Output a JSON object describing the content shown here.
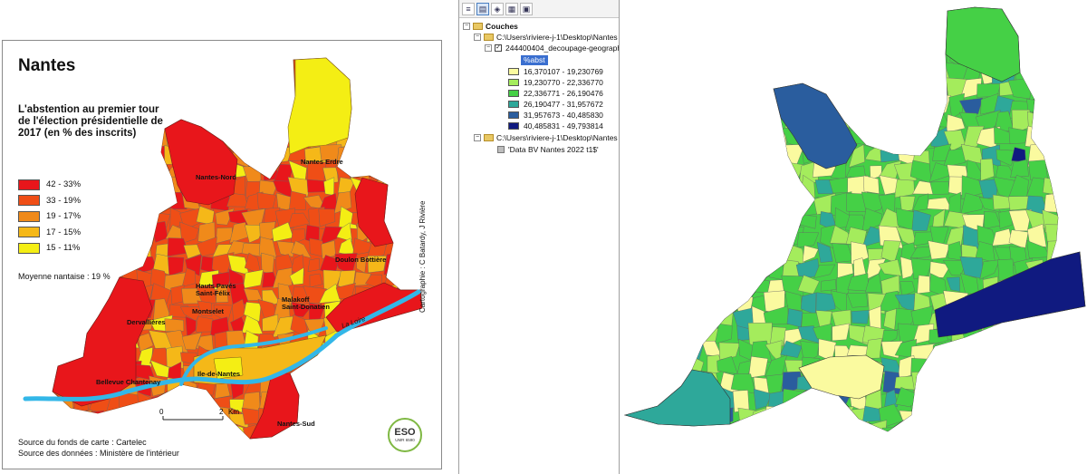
{
  "left_map": {
    "title": "Nantes",
    "subtitle": "L'abstention au premier tour de l'élection présidentielle de 2017 (en % des inscrits)",
    "legend": [
      {
        "label": "42 - 33%",
        "color": "#e8161b"
      },
      {
        "label": "33 - 19%",
        "color": "#ef4e16"
      },
      {
        "label": "19 - 17%",
        "color": "#f08a1a"
      },
      {
        "label": "17 - 15%",
        "color": "#f5b818"
      },
      {
        "label": "15 - 11%",
        "color": "#f4ee14"
      }
    ],
    "average_note": "Moyenne nantaise : 19 %",
    "places": {
      "nantes_nord": "Nantes-Nord",
      "nantes_erdre": "Nantes Erdre",
      "doulon": "Doulon Bottière",
      "hauts_paves": "Hauts Pavés",
      "saint_felix": "Saint-Félix",
      "malakoff": "Malakoff",
      "saint_donatien": "Saint-Donatien",
      "dervallieres": "Dervallières",
      "montsec": "Montselet",
      "ile_de_nantes": "Ile-de-Nantes",
      "bellevue": "Bellevue Chantenay",
      "nantes_sud": "Nantes-Sud",
      "la_loire": "La Loire"
    },
    "scale": {
      "start": "0",
      "end": "2",
      "unit": "Km"
    },
    "credit": "Cartographie : C Batardy, J Rivière",
    "source_fonds": "Source du fonds de carte : Cartelec",
    "source_donnees": "Source des données : Ministère de l'intérieur",
    "logo": {
      "main": "ESO",
      "sub": "UMR 6590"
    },
    "river_color": "#33b7e8"
  },
  "toc": {
    "root_label": "Couches",
    "group1_path": "C:\\Users\\riviere-j-1\\Desktop\\Nantes",
    "layer_name": "244400404_decoupage-geograph",
    "field_name": "%abst",
    "classes": [
      {
        "label": "16,370107 - 19,230769",
        "color": "#fafa9f"
      },
      {
        "label": "19,230770 - 22,336770",
        "color": "#a4ec5c"
      },
      {
        "label": "22,336771 - 26,190476",
        "color": "#45d046"
      },
      {
        "label": "26,190477 - 31,957672",
        "color": "#2ea89a"
      },
      {
        "label": "31,957673 - 40,485830",
        "color": "#2a5d9e"
      },
      {
        "label": "40,485831 - 49,793814",
        "color": "#101a80"
      }
    ],
    "group2_path": "C:\\Users\\riviere-j-1\\Desktop\\Nantes",
    "table_name": "'Data BV Nantes 2022 t1$'"
  }
}
